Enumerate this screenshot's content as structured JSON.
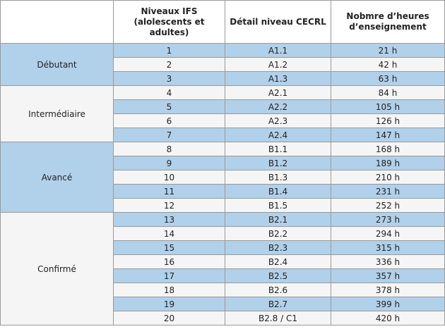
{
  "table": {
    "headers": {
      "col1": "",
      "col2": "Niveaux IFS (alolescents et adultes)",
      "col2_line1": "Niveaux IFS",
      "col2_line2": "(alolescents et adultes)",
      "col3": "Détail niveau CECRL",
      "col4": "Nobmre d'heures d'enseignement",
      "col4_line1": "Nobmre d’heures",
      "col4_line2": "d’enseignement"
    },
    "groups": [
      {
        "label": "Débutant",
        "rows": 3,
        "tone": "blue"
      },
      {
        "label": "Intermédiaire",
        "rows": 4,
        "tone": "white"
      },
      {
        "label": "Avancé",
        "rows": 5,
        "tone": "blue"
      },
      {
        "label": "Confirmé",
        "rows": 8,
        "tone": "white"
      }
    ],
    "rows": [
      {
        "level": "1",
        "cecrl": "A1.1",
        "hours": "21 h",
        "tone": "blue"
      },
      {
        "level": "2",
        "cecrl": "A1.2",
        "hours": "42 h",
        "tone": "white"
      },
      {
        "level": "3",
        "cecrl": "A1.3",
        "hours": "63 h",
        "tone": "blue"
      },
      {
        "level": "4",
        "cecrl": "A2.1",
        "hours": "84 h",
        "tone": "white"
      },
      {
        "level": "5",
        "cecrl": "A2.2",
        "hours": "105 h",
        "tone": "blue"
      },
      {
        "level": "6",
        "cecrl": "A2.3",
        "hours": "126 h",
        "tone": "white"
      },
      {
        "level": "7",
        "cecrl": "A2.4",
        "hours": "147 h",
        "tone": "blue"
      },
      {
        "level": "8",
        "cecrl": "B1.1",
        "hours": "168 h",
        "tone": "white"
      },
      {
        "level": "9",
        "cecrl": "B1.2",
        "hours": "189 h",
        "tone": "blue"
      },
      {
        "level": "10",
        "cecrl": "B1.3",
        "hours": "210 h",
        "tone": "white"
      },
      {
        "level": "11",
        "cecrl": "B1.4",
        "hours": "231 h",
        "tone": "blue"
      },
      {
        "level": "12",
        "cecrl": "B1.5",
        "hours": "252 h",
        "tone": "white"
      },
      {
        "level": "13",
        "cecrl": "B2.1",
        "hours": "273 h",
        "tone": "blue"
      },
      {
        "level": "14",
        "cecrl": "B2.2",
        "hours": "294 h",
        "tone": "white"
      },
      {
        "level": "15",
        "cecrl": "B2.3",
        "hours": "315 h",
        "tone": "blue"
      },
      {
        "level": "16",
        "cecrl": "B2.4",
        "hours": "336 h",
        "tone": "white"
      },
      {
        "level": "17",
        "cecrl": "B2.5",
        "hours": "357 h",
        "tone": "blue"
      },
      {
        "level": "18",
        "cecrl": "B2.6",
        "hours": "378 h",
        "tone": "white"
      },
      {
        "level": "19",
        "cecrl": "B2.7",
        "hours": "399 h",
        "tone": "blue"
      },
      {
        "level": "20",
        "cecrl": "B2.8 / C1",
        "hours": "420 h",
        "tone": "white"
      }
    ]
  }
}
